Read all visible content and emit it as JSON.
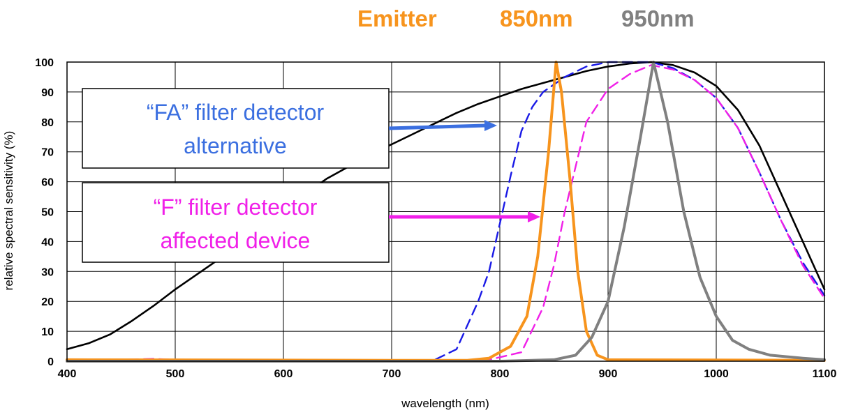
{
  "header": {
    "emitter_label": "Emitter",
    "emitter_color": "#f7941d",
    "wl1_label": "850nm",
    "wl1_color": "#f7941d",
    "wl2_label": "950nm",
    "wl2_color": "#808080"
  },
  "callouts": {
    "fa": {
      "line1": "“FA” filter detector",
      "line2": "alternative",
      "color": "#3b6fe0",
      "arrow_to": [
        770,
        80
      ]
    },
    "f": {
      "line1": "“F” filter detector",
      "line2": "affected device",
      "color": "#f020e8",
      "arrow_to": [
        830,
        48
      ]
    }
  },
  "chart_data": {
    "type": "line",
    "xlabel": "wavelength (nm)",
    "ylabel": "relative spectral sensitivity (%)",
    "xlim": [
      400,
      1100
    ],
    "ylim": [
      0,
      100
    ],
    "xticks": [
      400,
      500,
      600,
      700,
      800,
      900,
      1000,
      1100
    ],
    "yticks": [
      0,
      10,
      20,
      30,
      40,
      50,
      60,
      70,
      80,
      90,
      100
    ],
    "grid": true,
    "series": [
      {
        "key": "silicon",
        "color": "#000000",
        "dash": "none",
        "width": 2.6,
        "points": [
          [
            400,
            4
          ],
          [
            420,
            6
          ],
          [
            440,
            9
          ],
          [
            460,
            13.5
          ],
          [
            480,
            18.5
          ],
          [
            500,
            24
          ],
          [
            520,
            29
          ],
          [
            540,
            34
          ],
          [
            560,
            40
          ],
          [
            580,
            46
          ],
          [
            600,
            51
          ],
          [
            620,
            56
          ],
          [
            640,
            61
          ],
          [
            660,
            65
          ],
          [
            680,
            69
          ],
          [
            700,
            72.5
          ],
          [
            720,
            76
          ],
          [
            740,
            79.5
          ],
          [
            760,
            83
          ],
          [
            780,
            86
          ],
          [
            800,
            88.5
          ],
          [
            820,
            91
          ],
          [
            840,
            93
          ],
          [
            860,
            95
          ],
          [
            880,
            97
          ],
          [
            900,
            98.5
          ],
          [
            920,
            99.5
          ],
          [
            940,
            100
          ],
          [
            960,
            99
          ],
          [
            980,
            96.5
          ],
          [
            1000,
            92
          ],
          [
            1020,
            84
          ],
          [
            1040,
            72
          ],
          [
            1060,
            56
          ],
          [
            1080,
            40
          ],
          [
            1100,
            24
          ]
        ]
      },
      {
        "key": "fa_filter",
        "color": "#1a1ae6",
        "dash": "14 8",
        "width": 2.4,
        "points": [
          [
            400,
            0
          ],
          [
            700,
            0
          ],
          [
            740,
            0.5
          ],
          [
            760,
            4
          ],
          [
            780,
            20
          ],
          [
            790,
            30
          ],
          [
            800,
            46
          ],
          [
            810,
            62
          ],
          [
            820,
            77
          ],
          [
            830,
            85
          ],
          [
            840,
            90
          ],
          [
            860,
            95
          ],
          [
            880,
            98.5
          ],
          [
            900,
            100
          ],
          [
            940,
            100
          ],
          [
            960,
            98
          ],
          [
            980,
            94
          ],
          [
            1000,
            88
          ],
          [
            1020,
            78
          ],
          [
            1040,
            63
          ],
          [
            1060,
            47
          ],
          [
            1080,
            33
          ],
          [
            1100,
            22
          ]
        ]
      },
      {
        "key": "f_filter",
        "color": "#f020e8",
        "dash": "14 8",
        "width": 2.4,
        "points": [
          [
            400,
            0
          ],
          [
            480,
            0.8
          ],
          [
            500,
            0.5
          ],
          [
            700,
            0
          ],
          [
            790,
            0.5
          ],
          [
            820,
            3
          ],
          [
            840,
            18
          ],
          [
            850,
            32
          ],
          [
            860,
            50
          ],
          [
            870,
            65
          ],
          [
            880,
            80
          ],
          [
            900,
            91
          ],
          [
            920,
            96
          ],
          [
            940,
            99
          ],
          [
            960,
            97.5
          ],
          [
            980,
            94
          ],
          [
            1000,
            88
          ],
          [
            1020,
            78
          ],
          [
            1040,
            63
          ],
          [
            1060,
            47
          ],
          [
            1080,
            32
          ],
          [
            1100,
            21
          ]
        ]
      },
      {
        "key": "emitter_850",
        "color": "#f7941d",
        "dash": "none",
        "width": 4,
        "points": [
          [
            400,
            0.5
          ],
          [
            700,
            0.3
          ],
          [
            770,
            0.3
          ],
          [
            790,
            1
          ],
          [
            810,
            5
          ],
          [
            825,
            15
          ],
          [
            835,
            35
          ],
          [
            845,
            70
          ],
          [
            852,
            100
          ],
          [
            857,
            90
          ],
          [
            865,
            60
          ],
          [
            872,
            30
          ],
          [
            880,
            10
          ],
          [
            890,
            2
          ],
          [
            900,
            0.5
          ],
          [
            1100,
            0.3
          ]
        ]
      },
      {
        "key": "emitter_950",
        "color": "#808080",
        "dash": "none",
        "width": 4,
        "points": [
          [
            400,
            0
          ],
          [
            800,
            0
          ],
          [
            850,
            0.5
          ],
          [
            870,
            2
          ],
          [
            885,
            8
          ],
          [
            900,
            20
          ],
          [
            915,
            45
          ],
          [
            930,
            75
          ],
          [
            942,
            100
          ],
          [
            955,
            80
          ],
          [
            970,
            50
          ],
          [
            985,
            28
          ],
          [
            1000,
            15
          ],
          [
            1015,
            7
          ],
          [
            1030,
            4
          ],
          [
            1050,
            2
          ],
          [
            1080,
            1
          ],
          [
            1100,
            0.5
          ]
        ]
      }
    ]
  }
}
